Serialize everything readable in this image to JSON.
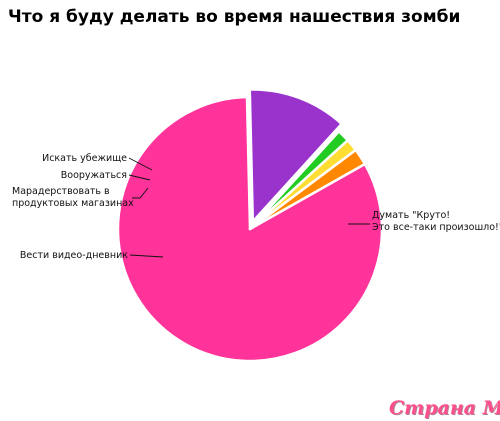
{
  "chart_data": {
    "type": "pie",
    "title": "Что я буду делать во время нашествия зомби",
    "slices": [
      {
        "label": "Думать \"Круто!\nЭто все-таки произошло!\"",
        "value": 82,
        "color": "#ff3399"
      },
      {
        "label": "Вести видео-дневник",
        "value": 12,
        "color": "#9933cc"
      },
      {
        "label": "Марадерствовать в\nпродуктовых магазинах",
        "value": 1.5,
        "color": "#22cc22"
      },
      {
        "label": "Вооружаться",
        "value": 1.5,
        "color": "#ffdd33"
      },
      {
        "label": "Искать убежище",
        "value": 2,
        "color": "#ff8800"
      }
    ],
    "exploded_slice": "Вести видео-дневник",
    "legend": "none (leader-line labels)"
  },
  "watermark": {
    "text": "Страна Мам"
  }
}
